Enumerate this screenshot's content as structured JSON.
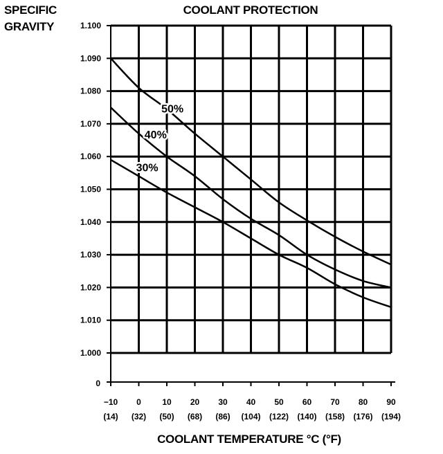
{
  "chart_data": {
    "type": "line",
    "title": "COOLANT PROTECTION",
    "ylabel_lines": [
      "SPECIFIC",
      "GRAVITY"
    ],
    "xlabel": "COOLANT TEMPERATURE °C (°F)",
    "x_ticks": [
      -10,
      0,
      10,
      20,
      30,
      40,
      50,
      60,
      70,
      80,
      90
    ],
    "x_tick_labels_c": [
      "−10",
      "0",
      "10",
      "20",
      "30",
      "40",
      "50",
      "60",
      "70",
      "80",
      "90"
    ],
    "x_tick_labels_f": [
      "(14)",
      "(32)",
      "(50)",
      "(68)",
      "(86)",
      "(104)",
      "(122)",
      "(140)",
      "(158)",
      "(176)",
      "(194)"
    ],
    "y_ticks": [
      1.0,
      1.01,
      1.02,
      1.03,
      1.04,
      1.05,
      1.06,
      1.07,
      1.08,
      1.09,
      1.1
    ],
    "y_tick_labels": [
      "1.000",
      "1.010",
      "1.020",
      "1.030",
      "1.040",
      "1.050",
      "1.060",
      "1.070",
      "1.080",
      "1.090",
      "1.100"
    ],
    "y_zero_label": "0",
    "xlim": [
      -10,
      90
    ],
    "ylim": [
      1.0,
      1.1
    ],
    "series": [
      {
        "name": "50%",
        "x": [
          -10,
          0,
          10,
          20,
          30,
          40,
          50,
          60,
          70,
          80,
          90
        ],
        "values": [
          1.09,
          1.081,
          1.0745,
          1.067,
          1.06,
          1.053,
          1.046,
          1.0405,
          1.0355,
          1.031,
          1.027
        ]
      },
      {
        "name": "40%",
        "x": [
          -10,
          0,
          10,
          20,
          30,
          40,
          50,
          60,
          70,
          80,
          90
        ],
        "values": [
          1.075,
          1.067,
          1.06,
          1.054,
          1.047,
          1.041,
          1.036,
          1.03,
          1.0255,
          1.022,
          1.02
        ]
      },
      {
        "name": "30%",
        "x": [
          -10,
          0,
          10,
          20,
          30,
          40,
          50,
          60,
          70,
          80,
          90
        ],
        "values": [
          1.059,
          1.054,
          1.049,
          1.0445,
          1.04,
          1.035,
          1.03,
          1.026,
          1.021,
          1.017,
          1.014
        ]
      }
    ],
    "series_labels": [
      {
        "text": "50%",
        "x": 12,
        "y": 1.0735
      },
      {
        "text": "40%",
        "x": 6,
        "y": 1.0655
      },
      {
        "text": "30%",
        "x": 3,
        "y": 1.0555
      }
    ]
  }
}
